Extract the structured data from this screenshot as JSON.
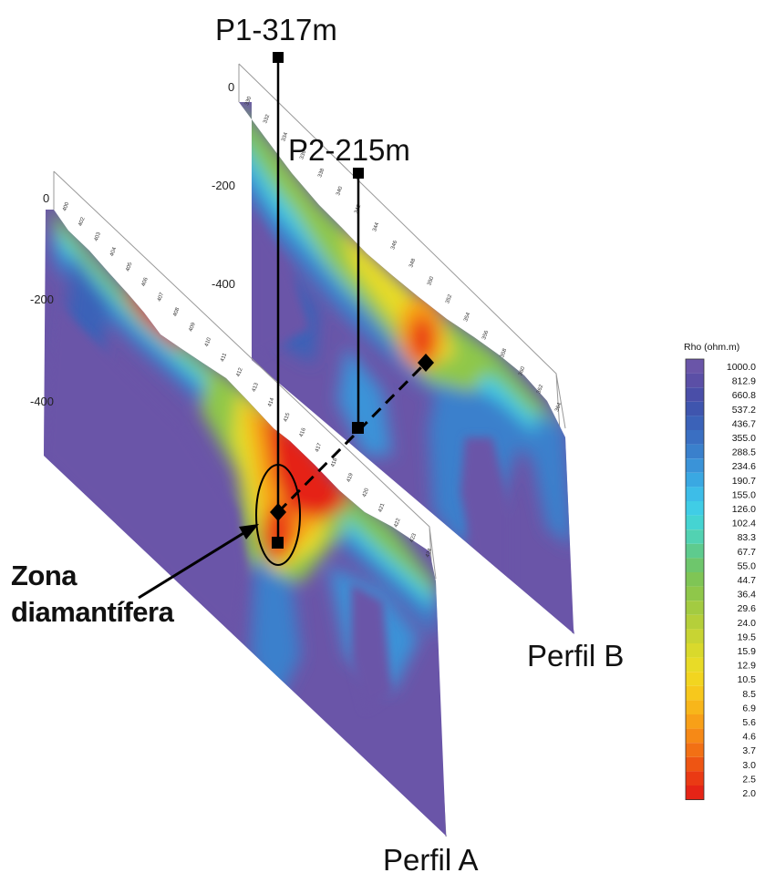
{
  "wells": [
    {
      "id": "P1",
      "label": "P1-317m"
    },
    {
      "id": "P2",
      "label": "P2-215m"
    }
  ],
  "profiles": [
    {
      "id": "A",
      "label": "Perfil A",
      "depth_ticks": [
        "0",
        "-200",
        "-400"
      ],
      "stations": [
        "400",
        "402",
        "403",
        "404",
        "405",
        "406",
        "407",
        "408",
        "409",
        "410",
        "411",
        "412",
        "413",
        "414",
        "415",
        "416",
        "417",
        "418",
        "419",
        "420",
        "421",
        "422",
        "423",
        "424"
      ]
    },
    {
      "id": "B",
      "label": "Perfil B",
      "depth_ticks": [
        "0",
        "-200",
        "-400"
      ],
      "stations": [
        "330",
        "332",
        "334",
        "336",
        "338",
        "340",
        "342",
        "344",
        "346",
        "348",
        "350",
        "352",
        "354",
        "356",
        "358",
        "360",
        "362",
        "364"
      ]
    }
  ],
  "annotation": {
    "line1": "Zona",
    "line2": "diamantífera"
  },
  "legend": {
    "title": "Rho (ohm.m)",
    "values": [
      "1000.0",
      "812.9",
      "660.8",
      "537.2",
      "436.7",
      "355.0",
      "288.5",
      "234.6",
      "190.7",
      "155.0",
      "126.0",
      "102.4",
      "83.3",
      "67.7",
      "55.0",
      "44.7",
      "36.4",
      "29.6",
      "24.0",
      "19.5",
      "15.9",
      "12.9",
      "10.5",
      "8.5",
      "6.9",
      "5.6",
      "4.6",
      "3.7",
      "3.0",
      "2.5",
      "2.0"
    ],
    "colors": [
      "#6a55a8",
      "#5b4fa6",
      "#4a4ea8",
      "#3f55ae",
      "#3b62b8",
      "#3a6fc2",
      "#3a80cc",
      "#3a93d8",
      "#3aa8e2",
      "#3dbde8",
      "#40cde6",
      "#45d4d2",
      "#52d2b2",
      "#5ecb8e",
      "#6ec66c",
      "#7fc555",
      "#8fc74a",
      "#a3cb41",
      "#b5cf3a",
      "#c8d433",
      "#d9d92c",
      "#e8db27",
      "#f2d520",
      "#f7c81c",
      "#f8b61a",
      "#f8a018",
      "#f68916",
      "#f27014",
      "#ee5513",
      "#ea3a14",
      "#e52416"
    ]
  }
}
